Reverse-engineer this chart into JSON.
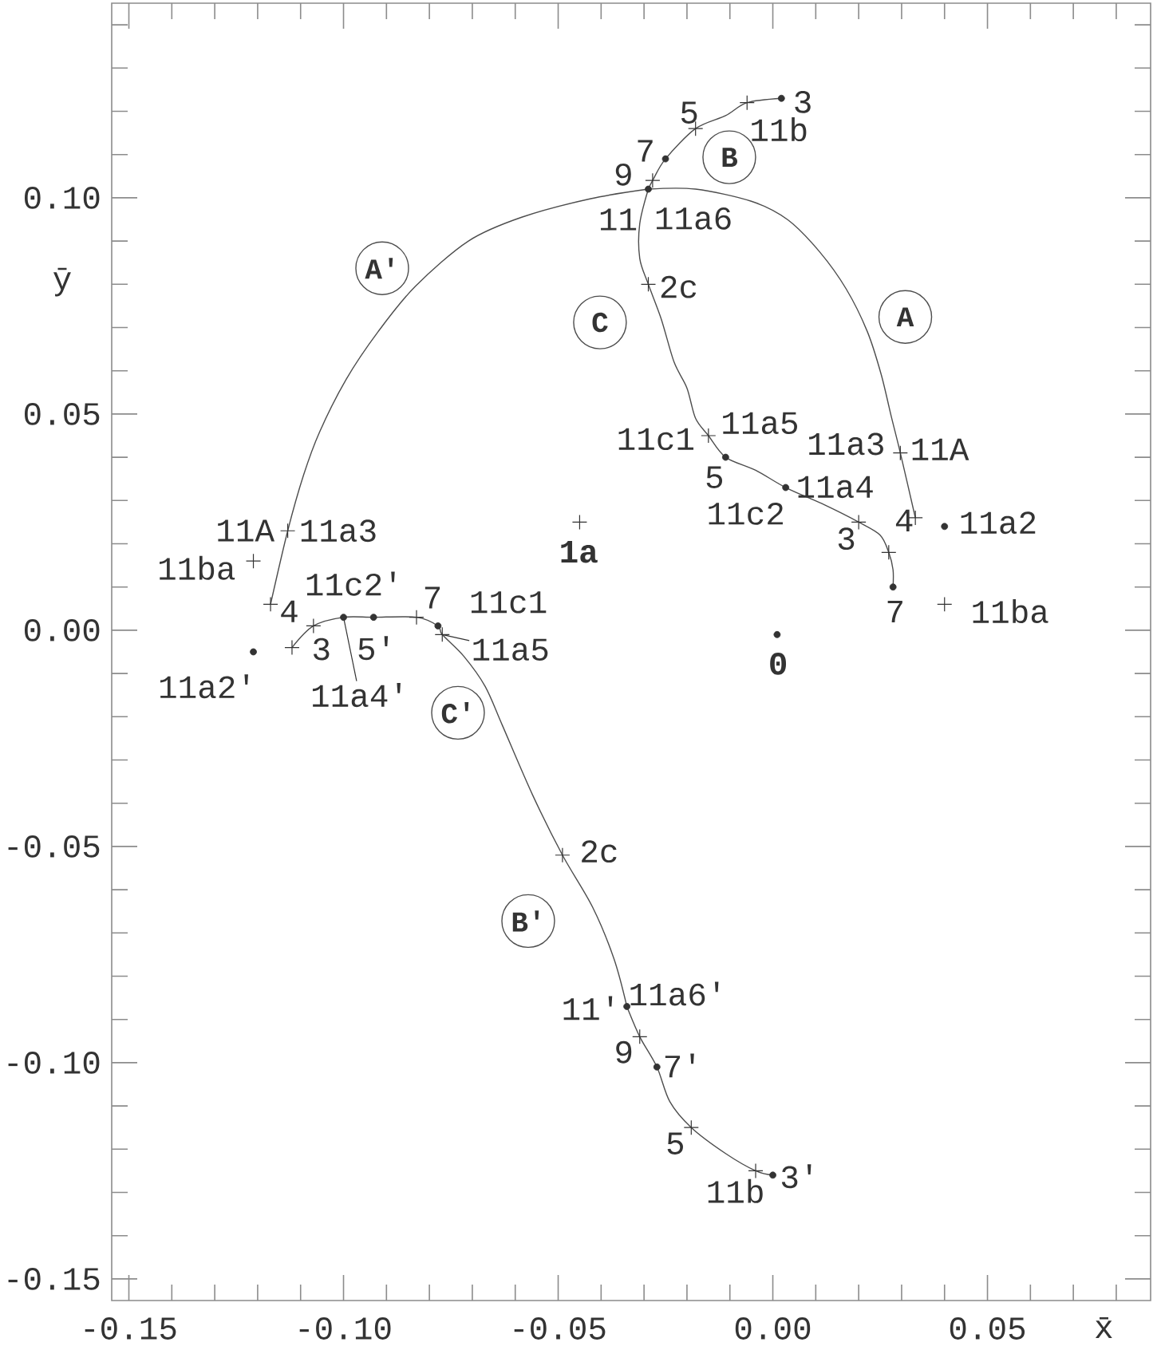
{
  "chart_data": {
    "type": "line",
    "xlabel": "x̄",
    "ylabel": "ȳ",
    "xlim": [
      -0.154,
      0.088
    ],
    "ylim": [
      -0.155,
      0.145
    ],
    "xticks": [
      -0.15,
      {
        "value": -0.14,
        "label": null
      },
      {
        "value": -0.13,
        "label": null
      },
      {
        "value": -0.12,
        "label": null
      },
      {
        "value": -0.11,
        "label": null
      },
      {
        "value": -0.1,
        "label": "-0.10"
      },
      {
        "value": -0.09,
        "label": null
      },
      {
        "value": -0.08,
        "label": null
      },
      {
        "value": -0.07,
        "label": null
      },
      {
        "value": -0.06,
        "label": null
      },
      -0.05,
      {
        "value": -0.04,
        "label": null
      },
      {
        "value": -0.03,
        "label": null
      },
      {
        "value": -0.02,
        "label": null
      },
      {
        "value": -0.01,
        "label": null
      },
      {
        "value": 0,
        "label": "0.00"
      },
      {
        "value": 0.01,
        "label": null
      },
      {
        "value": 0.02,
        "label": null
      },
      {
        "value": 0.03,
        "label": null
      },
      {
        "value": 0.04,
        "label": null
      },
      0.05,
      {
        "value": 0.06,
        "label": null
      },
      {
        "value": 0.07,
        "label": null
      },
      {
        "value": 0.08,
        "label": null
      }
    ],
    "yticks": [
      -0.15,
      {
        "value": -0.14,
        "label": null
      },
      {
        "value": -0.13,
        "label": null
      },
      {
        "value": -0.12,
        "label": null
      },
      {
        "value": -0.11,
        "label": null
      },
      {
        "value": -0.1,
        "label": "-0.10"
      },
      {
        "value": -0.09,
        "label": null
      },
      {
        "value": -0.08,
        "label": null
      },
      {
        "value": -0.07,
        "label": null
      },
      {
        "value": -0.06,
        "label": null
      },
      -0.05,
      {
        "value": -0.04,
        "label": null
      },
      {
        "value": -0.03,
        "label": null
      },
      {
        "value": -0.02,
        "label": null
      },
      {
        "value": -0.01,
        "label": null
      },
      {
        "value": 0,
        "label": "0.00"
      },
      {
        "value": 0.01,
        "label": null
      },
      {
        "value": 0.02,
        "label": null
      },
      {
        "value": 0.03,
        "label": null
      },
      {
        "value": 0.04,
        "label": null
      },
      0.05,
      {
        "value": 0.06,
        "label": null
      },
      {
        "value": 0.07,
        "label": null
      },
      {
        "value": 0.08,
        "label": null
      },
      {
        "value": 0.09,
        "label": null
      },
      {
        "value": 0.1,
        "label": "0.10"
      },
      {
        "value": 0.11,
        "label": null
      },
      {
        "value": 0.12,
        "label": null
      },
      {
        "value": 0.13,
        "label": null
      },
      {
        "value": 0.14,
        "label": null
      }
    ],
    "series": [
      {
        "color": "#4d4d4d",
        "x": [
          -0.029,
          -0.018,
          -0.005,
          0.0035,
          0.0109,
          0.0171,
          0.022,
          0.0252,
          0.0276,
          0.0297,
          0.0332
        ],
        "values": [
          0.102,
          0.102,
          0.0992,
          0.0949,
          0.0875,
          0.0789,
          0.0691,
          0.0593,
          0.0494,
          0.041,
          0.026
        ]
      },
      {
        "color": "#4d4d4d",
        "x": [
          -0.029,
          -0.0424,
          -0.0585,
          -0.0709,
          -0.0833,
          -0.0919,
          -0.0994,
          -0.1056,
          -0.1093,
          -0.113,
          -0.117
        ],
        "values": [
          0.102,
          0.0998,
          0.0955,
          0.09,
          0.0795,
          0.0691,
          0.058,
          0.0458,
          0.0359,
          0.023,
          0.006
        ]
      },
      {
        "color": "#4d4d4d",
        "x": [
          0.002,
          -0.006,
          -0.011,
          -0.018,
          -0.025,
          -0.028,
          -0.029
        ],
        "values": [
          0.123,
          0.122,
          0.119,
          0.116,
          0.109,
          0.104,
          0.102
        ]
      },
      {
        "color": "#4d4d4d",
        "x": [
          0.0,
          -0.004,
          -0.011,
          -0.019,
          -0.024,
          -0.027,
          -0.031,
          -0.034
        ],
        "values": [
          -0.126,
          -0.125,
          -0.121,
          -0.115,
          -0.109,
          -0.101,
          -0.094,
          -0.087
        ]
      },
      {
        "color": "#4d4d4d",
        "x": [
          -0.029,
          -0.031,
          -0.031,
          -0.029,
          -0.026,
          -0.023,
          -0.02,
          -0.018,
          -0.015,
          -0.011,
          -0.004,
          0.003,
          0.012,
          0.02,
          0.025,
          0.027,
          0.028,
          0.028
        ],
        "values": [
          0.102,
          0.094,
          0.086,
          0.08,
          0.072,
          0.062,
          0.056,
          0.049,
          0.045,
          0.04,
          0.037,
          0.033,
          0.029,
          0.025,
          0.022,
          0.018,
          0.014,
          0.01
        ]
      },
      {
        "color": "#4d4d4d",
        "x": [
          -0.034,
          -0.037,
          -0.042,
          -0.049,
          -0.056,
          -0.063,
          -0.067,
          -0.072,
          -0.077,
          -0.078,
          -0.083,
          -0.093,
          -0.1,
          -0.107,
          -0.112
        ],
        "values": [
          -0.087,
          -0.076,
          -0.064,
          -0.052,
          -0.038,
          -0.022,
          -0.013,
          -0.006,
          -0.001,
          0.001,
          0.003,
          0.003,
          0.003,
          0.001,
          -0.004
        ]
      },
      {
        "type": "scatter",
        "marker": "cross",
        "color": "#333333",
        "x": [
          -0.006,
          -0.018,
          -0.028,
          -0.029,
          -0.015,
          0.02,
          0.027,
          0.0297,
          0.0332,
          0.04,
          -0.045,
          -0.113,
          -0.117,
          -0.121,
          -0.112,
          -0.107,
          -0.083,
          -0.077,
          -0.049,
          -0.031,
          -0.019,
          -0.004
        ],
        "values": [
          0.122,
          0.116,
          0.104,
          0.08,
          0.045,
          0.025,
          0.018,
          0.041,
          0.026,
          0.006,
          0.025,
          0.023,
          0.006,
          0.016,
          -0.004,
          0.001,
          0.003,
          -0.001,
          -0.052,
          -0.094,
          -0.115,
          -0.125
        ]
      },
      {
        "type": "scatter",
        "marker": "circle",
        "color": "#333333",
        "x": [
          0.002,
          -0.025,
          -0.029,
          -0.011,
          0.003,
          0.028,
          0.04,
          0.001,
          -0.121,
          -0.1,
          -0.093,
          -0.078,
          -0.034,
          -0.027,
          0.0
        ],
        "values": [
          0.123,
          0.109,
          0.102,
          0.04,
          0.033,
          0.01,
          0.024,
          -0.001,
          -0.005,
          0.003,
          0.003,
          0.001,
          -0.087,
          -0.101,
          -0.126
        ]
      }
    ],
    "annotations": [
      {
        "text": "3",
        "x": 0.002,
        "y": 0.123
      },
      {
        "text": "11b",
        "x": -0.006,
        "y": 0.122
      },
      {
        "text": "5",
        "x": -0.018,
        "y": 0.116
      },
      {
        "text": "7",
        "x": -0.025,
        "y": 0.109
      },
      {
        "text": "9",
        "x": -0.028,
        "y": 0.104
      },
      {
        "text": "11",
        "x": -0.029,
        "y": 0.102
      },
      {
        "text": "11a6",
        "x": -0.029,
        "y": 0.102
      },
      {
        "text": "2c",
        "x": -0.029,
        "y": 0.08
      },
      {
        "text": "11c1",
        "x": -0.015,
        "y": 0.045
      },
      {
        "text": "11a5",
        "x": -0.015,
        "y": 0.045
      },
      {
        "text": "5",
        "x": -0.011,
        "y": 0.04
      },
      {
        "text": "11a4",
        "x": 0.003,
        "y": 0.033
      },
      {
        "text": "11c2",
        "x": 0.003,
        "y": 0.033
      },
      {
        "text": "3",
        "x": 0.02,
        "y": 0.025
      },
      {
        "text": "7",
        "x": 0.028,
        "y": 0.01
      },
      {
        "text": "11a3",
        "x": 0.0297,
        "y": 0.041
      },
      {
        "text": "11A",
        "x": 0.0297,
        "y": 0.041
      },
      {
        "text": "4",
        "x": 0.0332,
        "y": 0.026
      },
      {
        "text": "11a2",
        "x": 0.04,
        "y": 0.024
      },
      {
        "text": "11ba",
        "x": 0.04,
        "y": 0.006
      },
      {
        "text": "1a",
        "x": -0.045,
        "y": 0.025
      },
      {
        "text": "0",
        "x": 0.001,
        "y": -0.001
      },
      {
        "text": "11A",
        "x": -0.113,
        "y": 0.023
      },
      {
        "text": "11a3",
        "x": -0.113,
        "y": 0.023
      },
      {
        "text": "11ba",
        "x": -0.121,
        "y": 0.016
      },
      {
        "text": "4",
        "x": -0.117,
        "y": 0.006
      },
      {
        "text": "11a2'",
        "x": -0.121,
        "y": -0.005
      },
      {
        "text": "3",
        "x": -0.112,
        "y": -0.004
      },
      {
        "text": "11c2'",
        "x": -0.1,
        "y": 0.003
      },
      {
        "text": "11a4'",
        "x": -0.1,
        "y": 0.003
      },
      {
        "text": "5'",
        "x": -0.093,
        "y": 0.003
      },
      {
        "text": "7",
        "x": -0.083,
        "y": 0.003
      },
      {
        "text": "11c1",
        "x": -0.078,
        "y": 0.001
      },
      {
        "text": "11a5",
        "x": -0.077,
        "y": -0.001
      },
      {
        "text": "2c",
        "x": -0.049,
        "y": -0.052
      },
      {
        "text": "11'",
        "x": -0.034,
        "y": -0.087
      },
      {
        "text": "11a6'",
        "x": -0.034,
        "y": -0.087
      },
      {
        "text": "9",
        "x": -0.031,
        "y": -0.094
      },
      {
        "text": "7'",
        "x": -0.027,
        "y": -0.101
      },
      {
        "text": "5",
        "x": -0.019,
        "y": -0.115
      },
      {
        "text": "11b",
        "x": -0.004,
        "y": -0.125
      },
      {
        "text": "3'",
        "x": 0.0,
        "y": -0.126
      },
      {
        "text": "A",
        "x": 0.0171,
        "y": 0.0789
      },
      {
        "text": "A'",
        "x": -0.0833,
        "y": 0.0795
      },
      {
        "text": "B",
        "x": -0.011,
        "y": 0.119
      },
      {
        "text": "B'",
        "x": -0.042,
        "y": -0.064
      },
      {
        "text": "C",
        "x": -0.029,
        "y": 0.08
      },
      {
        "text": "C'",
        "x": -0.063,
        "y": -0.022
      }
    ]
  }
}
